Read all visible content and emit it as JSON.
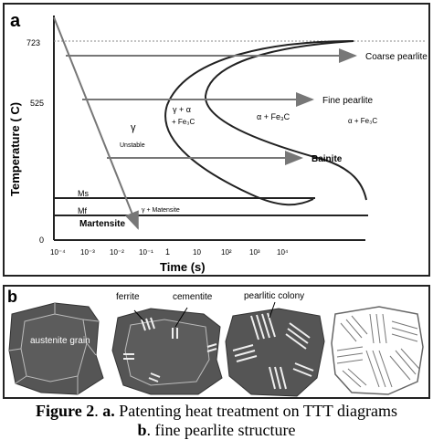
{
  "panel_a": {
    "label": "a",
    "y_axis_label": "Temperature ( C)",
    "x_axis_label": "Time (s)",
    "y_ticks": [
      "723",
      "525",
      "0"
    ],
    "x_ticks": [
      "10⁻⁴",
      "10⁻³",
      "10⁻²",
      "10⁻¹",
      "1",
      "10",
      "10²",
      "10³",
      "10⁴"
    ],
    "region_labels": {
      "coarse_pearlite": "Coarse pearlite",
      "fine_pearlite": "Fine pearlite",
      "bainite": "Bainite",
      "martensite": "Martensite",
      "gamma": "γ",
      "unstable": "Unstable",
      "gamma_alpha": "γ + α",
      "fe3c_1": "+ Fe₃C",
      "alpha_fe3c": "α  + Fe₃C",
      "alpha_fe3c_2": "α  + Fe₃C",
      "ms": "Ms",
      "mf": "Mf",
      "gamma_martensite": "γ + Matensite"
    }
  },
  "panel_b": {
    "label": "b",
    "labels": {
      "austenite_grain": "austenite grain",
      "ferrite": "ferrite",
      "cementite": "cementite",
      "pearlitic_colony": "pearlitic colony"
    }
  },
  "caption": {
    "prefix": "Figure 2",
    "sep": ". ",
    "a_tag": "a.",
    "a_text": " Patenting heat treatment on TTT diagrams",
    "b_tag": "b",
    "b_text": ". fine pearlite structure"
  }
}
